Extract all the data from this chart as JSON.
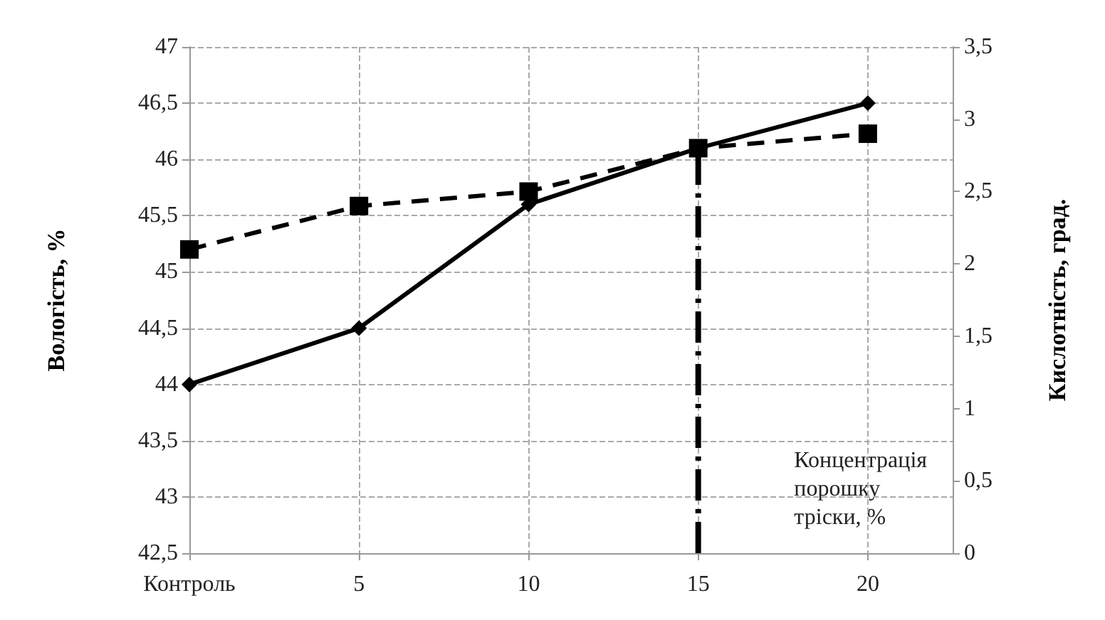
{
  "chart_data": {
    "type": "line",
    "xlabel": "Концентрація порошку тріски, %",
    "ylabel": "Вологість, %",
    "y2label": "Кислотність, град.",
    "categories": [
      "Контроль",
      "5",
      "10",
      "15",
      "20"
    ],
    "series": [
      {
        "color": "#000000",
        "marker": "diamond",
        "line_style": "solid",
        "values": [
          44,
          44.5,
          45.6,
          46.1,
          46.5
        ]
      },
      {
        "color": "#000000",
        "marker": "square",
        "line_style": "dashed",
        "axis": "y2",
        "values": [
          2.1,
          2.4,
          2.5,
          2.8,
          2.9
        ]
      }
    ],
    "ylim": [
      42.5,
      47
    ],
    "yticks": [
      {
        "value": 42.5,
        "label": "42,5"
      },
      43,
      {
        "value": 43.5,
        "label": "43,5"
      },
      44,
      {
        "value": 44.5,
        "label": "44,5"
      },
      45,
      {
        "value": 45.5,
        "label": "45,5"
      },
      46,
      {
        "value": 46.5,
        "label": "46,5"
      },
      47
    ],
    "y2lim": [
      0,
      3.5
    ],
    "y2ticks": [
      0,
      {
        "value": 0.5,
        "label": "0,5"
      },
      1,
      {
        "value": 1.5,
        "label": "1,5"
      },
      2,
      {
        "value": 2.5,
        "label": "2,5"
      },
      3,
      {
        "value": 3.5,
        "label": "3,5"
      }
    ],
    "ref_lines": [
      {
        "axis": "x",
        "value": "15",
        "line_style": "dashdot",
        "color": "#000000"
      }
    ],
    "grid": true
  }
}
